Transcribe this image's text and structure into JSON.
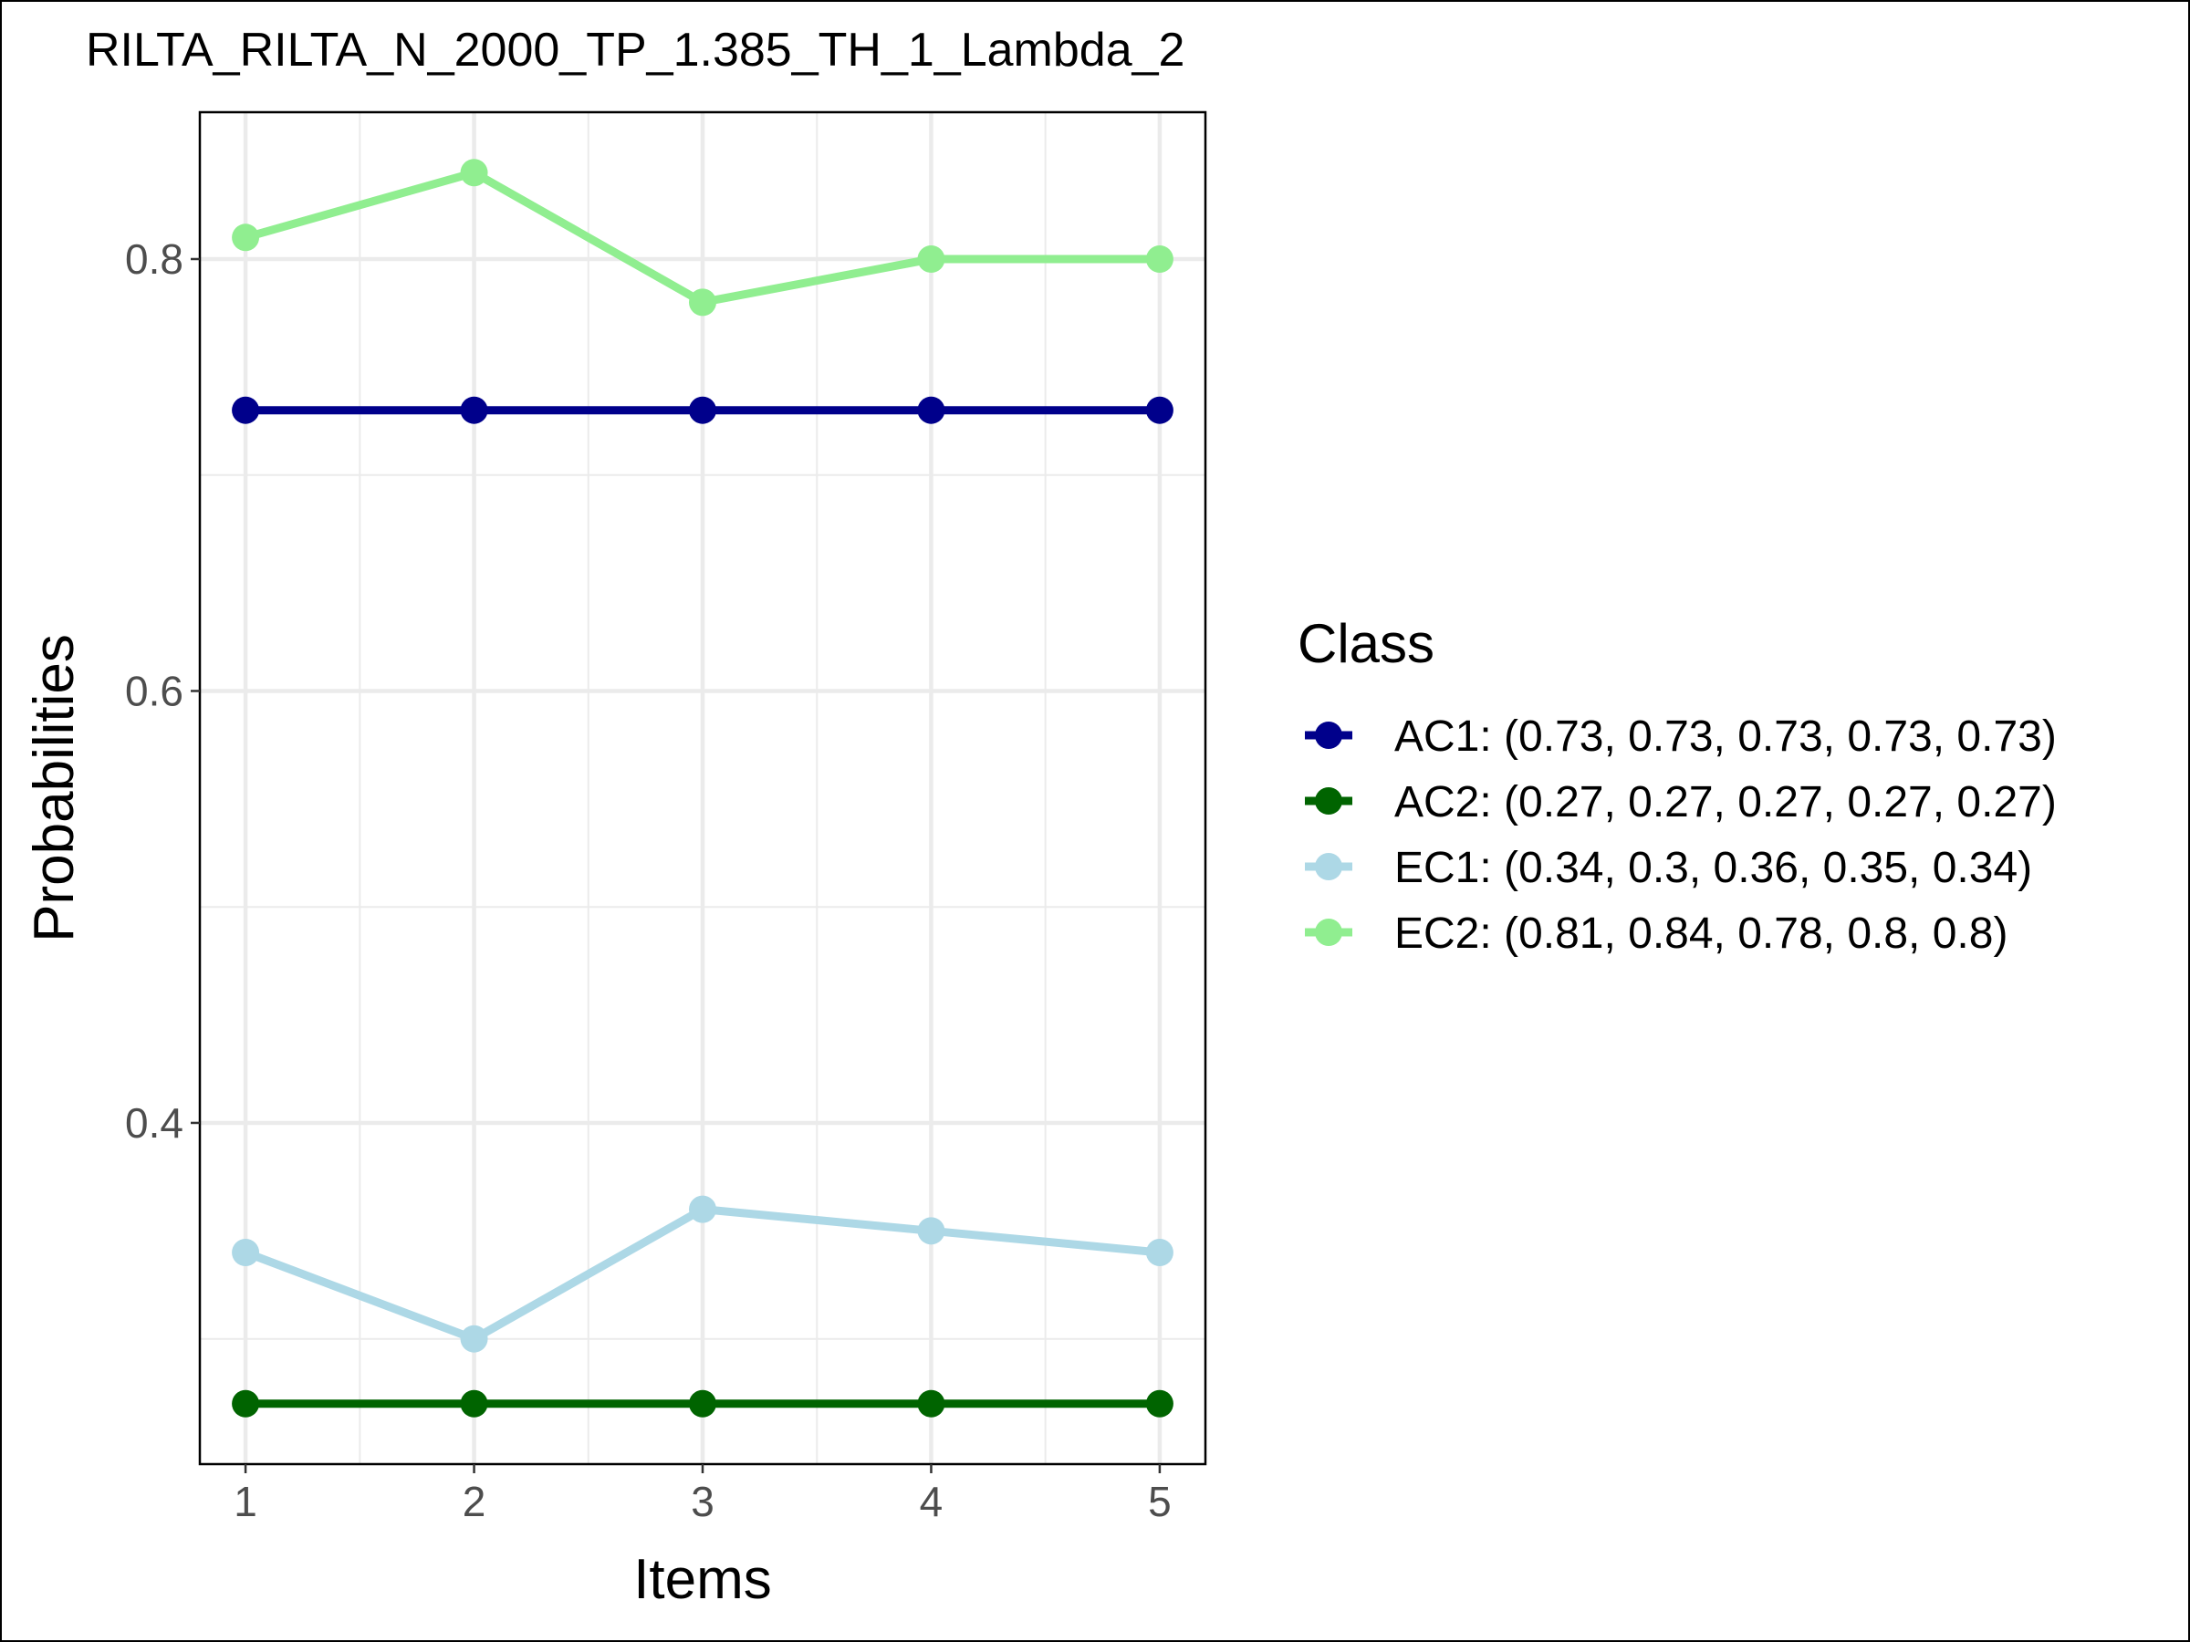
{
  "chart_data": {
    "type": "line",
    "title": "RILTA_RILTA_N_2000_TP_1.385_TH_1_Lambda_2",
    "xlabel": "Items",
    "ylabel": "Probabilities",
    "x": [
      1,
      2,
      3,
      4,
      5
    ],
    "x_tick_labels": [
      "1",
      "2",
      "3",
      "4",
      "5"
    ],
    "y_ticks": [
      0.4,
      0.6,
      0.8
    ],
    "y_tick_labels": [
      "0.4",
      "0.6",
      "0.8"
    ],
    "xlim": [
      0.8,
      5.2
    ],
    "ylim": [
      0.242,
      0.868
    ],
    "grid": true,
    "legend": {
      "title": "Class",
      "placement": "right"
    },
    "series": [
      {
        "name": "AC1",
        "label": "AC1: (0.73, 0.73, 0.73, 0.73, 0.73)",
        "color": "#00008b",
        "values": [
          0.73,
          0.73,
          0.73,
          0.73,
          0.73
        ]
      },
      {
        "name": "AC2",
        "label": "AC2: (0.27, 0.27, 0.27, 0.27, 0.27)",
        "color": "#006400",
        "values": [
          0.27,
          0.27,
          0.27,
          0.27,
          0.27
        ]
      },
      {
        "name": "EC1",
        "label": "EC1: (0.34, 0.3, 0.36, 0.35, 0.34)",
        "color": "#add8e6",
        "values": [
          0.34,
          0.3,
          0.36,
          0.35,
          0.34
        ]
      },
      {
        "name": "EC2",
        "label": "EC2: (0.81, 0.84, 0.78, 0.8, 0.8)",
        "color": "#90ee90",
        "values": [
          0.81,
          0.84,
          0.78,
          0.8,
          0.8
        ]
      }
    ]
  }
}
